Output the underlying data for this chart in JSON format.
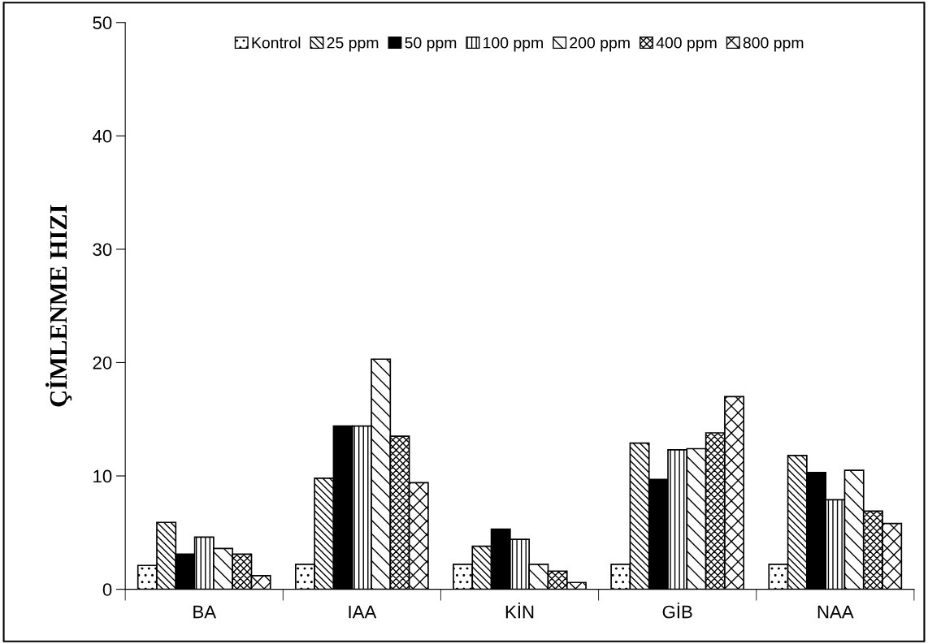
{
  "chart_data": {
    "type": "bar",
    "ylabel": "ÇİMLENME HIZI",
    "categories": [
      "BA",
      "IAA",
      "KİN",
      "GİB",
      "NAA"
    ],
    "series": [
      {
        "name": "Kontrol",
        "color": "#000000",
        "values": [
          2.1,
          2.2,
          2.2,
          2.2,
          2.2
        ]
      },
      {
        "name": "25 ppm",
        "color": "#000000",
        "values": [
          5.9,
          9.8,
          3.8,
          12.9,
          11.8
        ]
      },
      {
        "name": "50 ppm",
        "color": "#000000",
        "values": [
          3.1,
          14.4,
          5.3,
          9.7,
          10.3
        ]
      },
      {
        "name": "100 ppm",
        "color": "#000000",
        "values": [
          4.6,
          14.4,
          4.4,
          12.3,
          7.9
        ]
      },
      {
        "name": "200 ppm",
        "color": "#000000",
        "values": [
          3.6,
          20.3,
          2.2,
          12.4,
          10.5
        ]
      },
      {
        "name": "400 ppm",
        "color": "#000000",
        "values": [
          3.1,
          13.5,
          1.6,
          13.8,
          6.9
        ]
      },
      {
        "name": "800 ppm",
        "color": "#000000",
        "values": [
          1.2,
          9.4,
          0.6,
          17.0,
          5.8
        ]
      }
    ],
    "ylim": [
      0,
      50
    ],
    "yticks": [
      0,
      10,
      20,
      30,
      40,
      50
    ],
    "grid": false,
    "legend": "top"
  }
}
